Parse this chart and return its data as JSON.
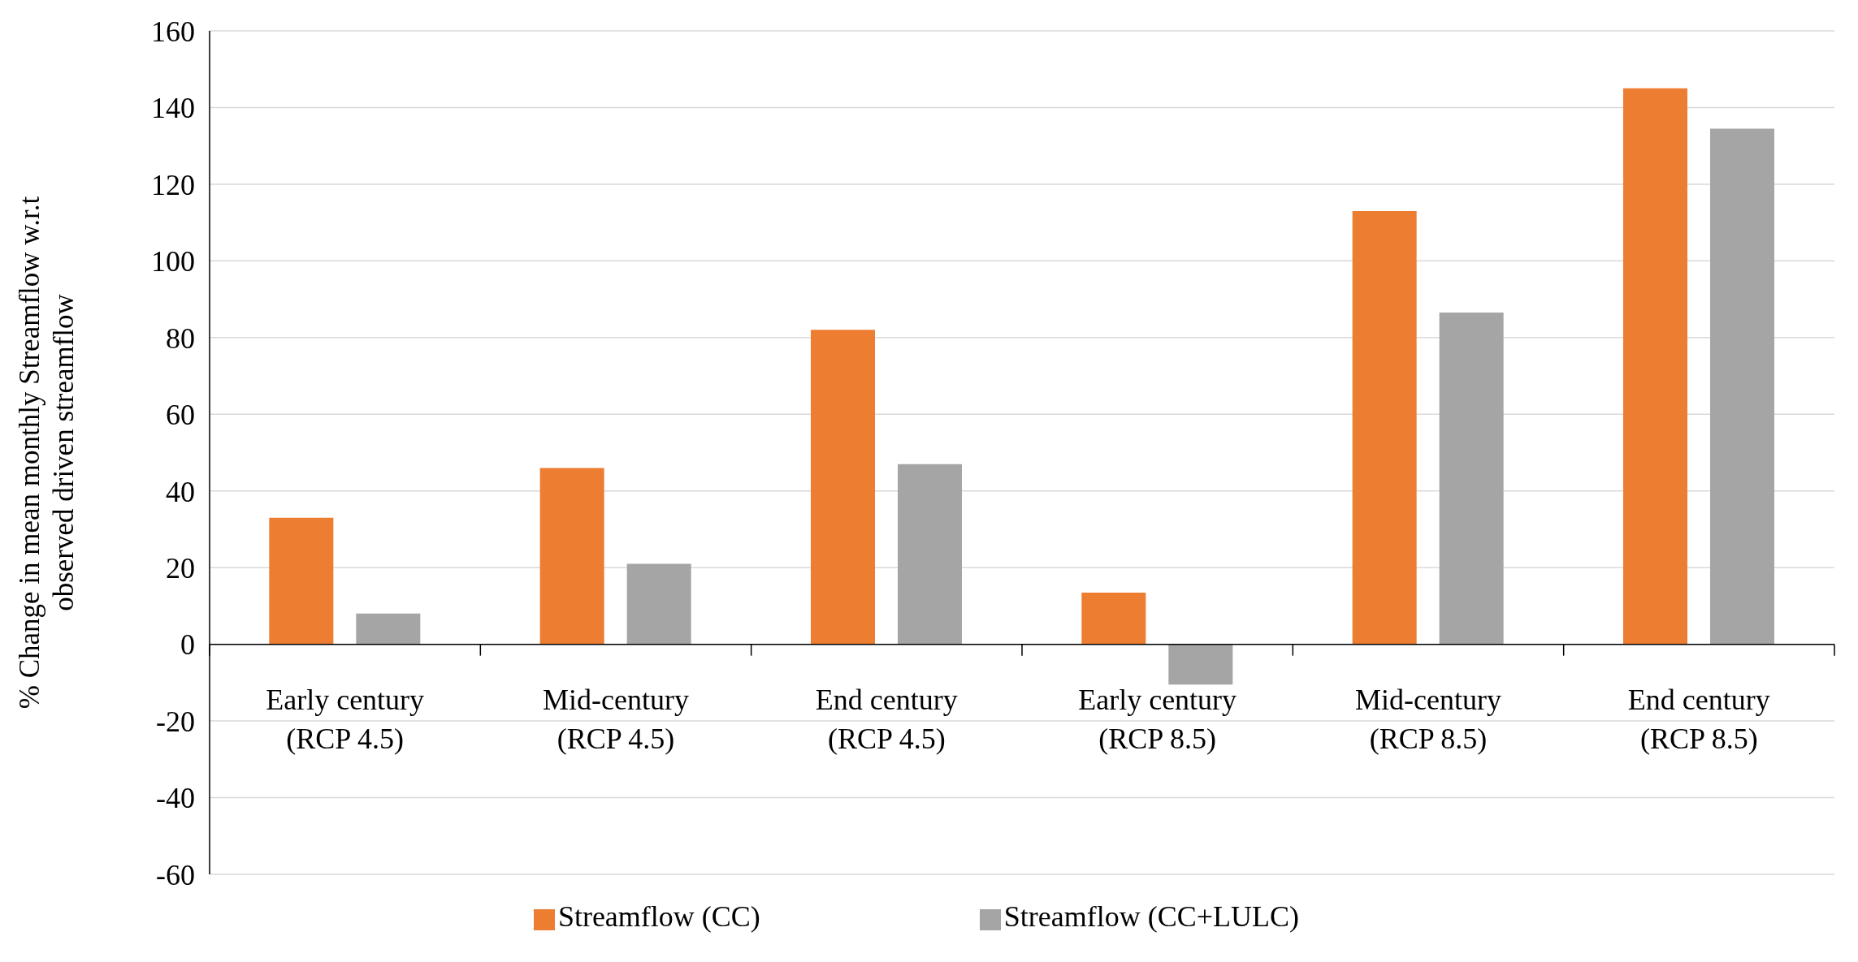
{
  "chart_data": {
    "type": "bar",
    "ylabel": "% Change in mean monthly Streamflow w.r.t\nobserved driven streamflow",
    "categories": [
      "Early century\n(RCP 4.5)",
      "Mid-century\n(RCP 4.5)",
      "End century\n(RCP 4.5)",
      "Early century\n(RCP 8.5)",
      "Mid-century\n(RCP 8.5)",
      "End century\n(RCP 8.5)"
    ],
    "series": [
      {
        "name": "Streamflow (CC)",
        "color": "#ed7d31",
        "values": [
          33,
          46,
          82,
          13.5,
          113,
          145
        ]
      },
      {
        "name": "Streamflow  (CC+LULC)",
        "color": "#a5a5a5",
        "values": [
          8,
          21,
          47,
          -10.5,
          86.5,
          134.5
        ]
      }
    ],
    "ylim": [
      -60,
      160
    ],
    "yticks": [
      -60,
      -40,
      -20,
      0,
      20,
      40,
      60,
      80,
      100,
      120,
      140,
      160
    ],
    "grid": "y",
    "legend": "bottom"
  }
}
